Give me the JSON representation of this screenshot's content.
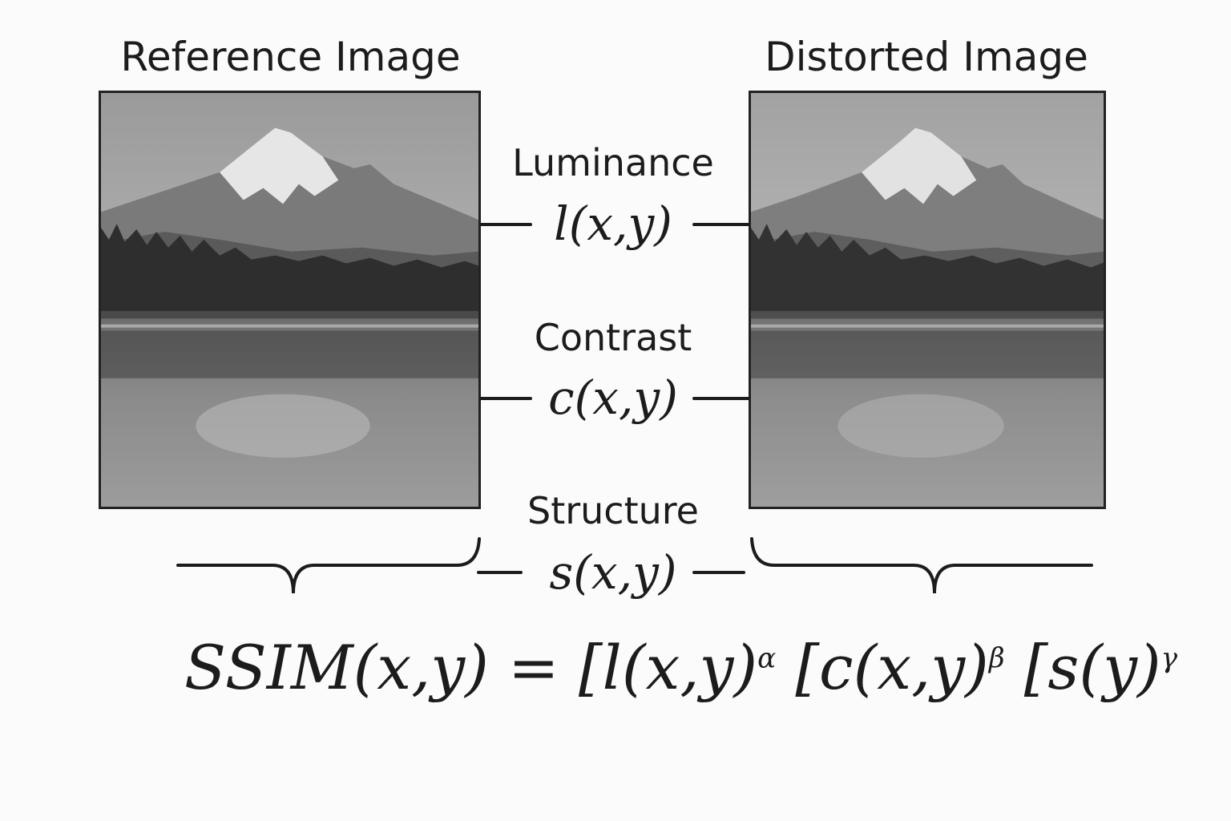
{
  "titles": {
    "reference": "Reference Image",
    "distorted": "Distorted Image"
  },
  "components": {
    "luminance": {
      "label": "Luminance",
      "fn": "l(x,y)"
    },
    "contrast": {
      "label": "Contrast",
      "fn": "c(x,y)"
    },
    "structure": {
      "label": "Structure",
      "fn": "s(x,y)"
    }
  },
  "formula": "SSIM(x,y) = [l(x,y)^α [c(x,y)^β [s(y)^γ",
  "images": {
    "reference": "mountain-lake-grayscale",
    "distorted": "mountain-lake-grayscale-distorted"
  },
  "colors": {
    "ink": "#1c1c1c",
    "background": "#fbfbfb"
  }
}
